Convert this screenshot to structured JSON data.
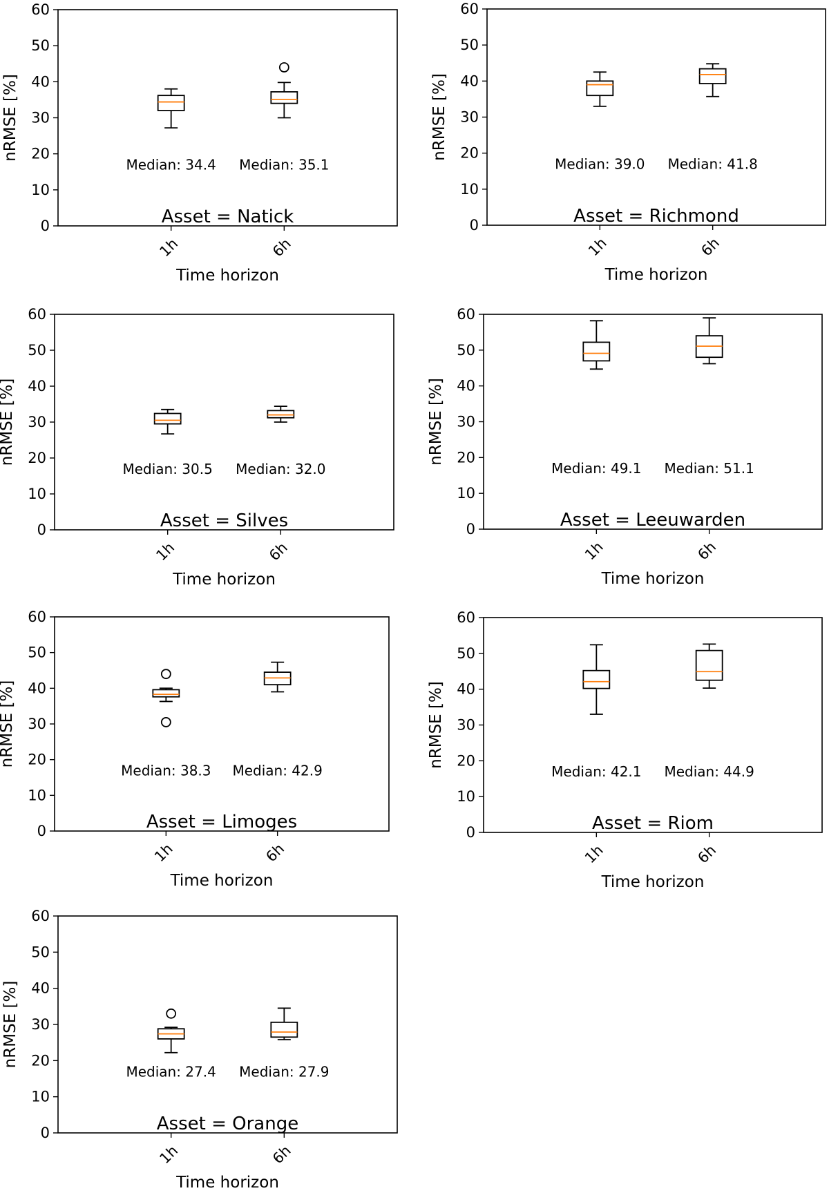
{
  "chart_data": [
    {
      "type": "box",
      "ylabel": "nRMSE [%]",
      "xlabel": "Time horizon",
      "ylim": [
        0,
        60
      ],
      "yticks": [
        0,
        10,
        20,
        30,
        40,
        50,
        60
      ],
      "categories": [
        "1h",
        "6h"
      ],
      "asset_label": "Asset = Natick",
      "boxes": [
        {
          "whislo": 27.2,
          "q1": 32.0,
          "med": 34.4,
          "q3": 36.2,
          "whishi": 38.0,
          "fliers": []
        },
        {
          "whislo": 30.0,
          "q1": 34.0,
          "med": 35.1,
          "q3": 37.2,
          "whishi": 39.8,
          "fliers": [
            44.0
          ]
        }
      ],
      "median_labels": [
        "Median: 34.4",
        "Median: 35.1"
      ]
    },
    {
      "type": "box",
      "ylabel": "nRMSE [%]",
      "xlabel": "Time horizon",
      "ylim": [
        0,
        60
      ],
      "yticks": [
        0,
        10,
        20,
        30,
        40,
        50,
        60
      ],
      "categories": [
        "1h",
        "6h"
      ],
      "asset_label": "Asset = Richmond",
      "boxes": [
        {
          "whislo": 33.0,
          "q1": 36.0,
          "med": 39.0,
          "q3": 40.0,
          "whishi": 42.5,
          "fliers": []
        },
        {
          "whislo": 35.7,
          "q1": 39.3,
          "med": 41.8,
          "q3": 43.4,
          "whishi": 44.8,
          "fliers": []
        }
      ],
      "median_labels": [
        "Median: 39.0",
        "Median: 41.8"
      ]
    },
    {
      "type": "box",
      "ylabel": "nRMSE [%]",
      "xlabel": "Time horizon",
      "ylim": [
        0,
        60
      ],
      "yticks": [
        0,
        10,
        20,
        30,
        40,
        50,
        60
      ],
      "categories": [
        "1h",
        "6h"
      ],
      "asset_label": "Asset = Silves",
      "boxes": [
        {
          "whislo": 26.7,
          "q1": 29.5,
          "med": 30.5,
          "q3": 32.4,
          "whishi": 33.5,
          "fliers": []
        },
        {
          "whislo": 30.0,
          "q1": 31.2,
          "med": 32.0,
          "q3": 33.2,
          "whishi": 34.4,
          "fliers": []
        }
      ],
      "median_labels": [
        "Median: 30.5",
        "Median: 32.0"
      ]
    },
    {
      "type": "box",
      "ylabel": "nRMSE [%]",
      "xlabel": "Time horizon",
      "ylim": [
        0,
        60
      ],
      "yticks": [
        0,
        10,
        20,
        30,
        40,
        50,
        60
      ],
      "categories": [
        "1h",
        "6h"
      ],
      "asset_label": "Asset = Leeuwarden",
      "boxes": [
        {
          "whislo": 44.7,
          "q1": 47.0,
          "med": 49.1,
          "q3": 52.2,
          "whishi": 58.2,
          "fliers": []
        },
        {
          "whislo": 46.2,
          "q1": 48.0,
          "med": 51.1,
          "q3": 54.0,
          "whishi": 59.0,
          "fliers": []
        }
      ],
      "median_labels": [
        "Median: 49.1",
        "Median: 51.1"
      ]
    },
    {
      "type": "box",
      "ylabel": "nRMSE [%]",
      "xlabel": "Time horizon",
      "ylim": [
        0,
        60
      ],
      "yticks": [
        0,
        10,
        20,
        30,
        40,
        50,
        60
      ],
      "categories": [
        "1h",
        "6h"
      ],
      "asset_label": "Asset = Limoges",
      "boxes": [
        {
          "whislo": 36.3,
          "q1": 37.6,
          "med": 38.3,
          "q3": 39.6,
          "whishi": 40.0,
          "fliers": [
            44.0,
            30.5
          ]
        },
        {
          "whislo": 39.0,
          "q1": 41.0,
          "med": 42.9,
          "q3": 44.5,
          "whishi": 47.3,
          "fliers": []
        }
      ],
      "median_labels": [
        "Median: 38.3",
        "Median: 42.9"
      ]
    },
    {
      "type": "box",
      "ylabel": "nRMSE [%]",
      "xlabel": "Time horizon",
      "ylim": [
        0,
        60
      ],
      "yticks": [
        0,
        10,
        20,
        30,
        40,
        50,
        60
      ],
      "categories": [
        "1h",
        "6h"
      ],
      "asset_label": "Asset = Riom",
      "boxes": [
        {
          "whislo": 33.0,
          "q1": 40.2,
          "med": 42.1,
          "q3": 45.2,
          "whishi": 52.4,
          "fliers": []
        },
        {
          "whislo": 40.3,
          "q1": 42.5,
          "med": 44.9,
          "q3": 50.8,
          "whishi": 52.6,
          "fliers": []
        }
      ],
      "median_labels": [
        "Median: 42.1",
        "Median: 44.9"
      ]
    },
    {
      "type": "box",
      "ylabel": "nRMSE [%]",
      "xlabel": "Time horizon",
      "ylim": [
        0,
        60
      ],
      "yticks": [
        0,
        10,
        20,
        30,
        40,
        50,
        60
      ],
      "categories": [
        "1h",
        "6h"
      ],
      "asset_label": "Asset = Orange",
      "boxes": [
        {
          "whislo": 22.2,
          "q1": 26.0,
          "med": 27.4,
          "q3": 28.8,
          "whishi": 29.2,
          "fliers": [
            33.0
          ]
        },
        {
          "whislo": 25.8,
          "q1": 26.5,
          "med": 27.9,
          "q3": 30.6,
          "whishi": 34.5,
          "fliers": []
        }
      ],
      "median_labels": [
        "Median: 27.4",
        "Median: 27.9"
      ]
    }
  ]
}
